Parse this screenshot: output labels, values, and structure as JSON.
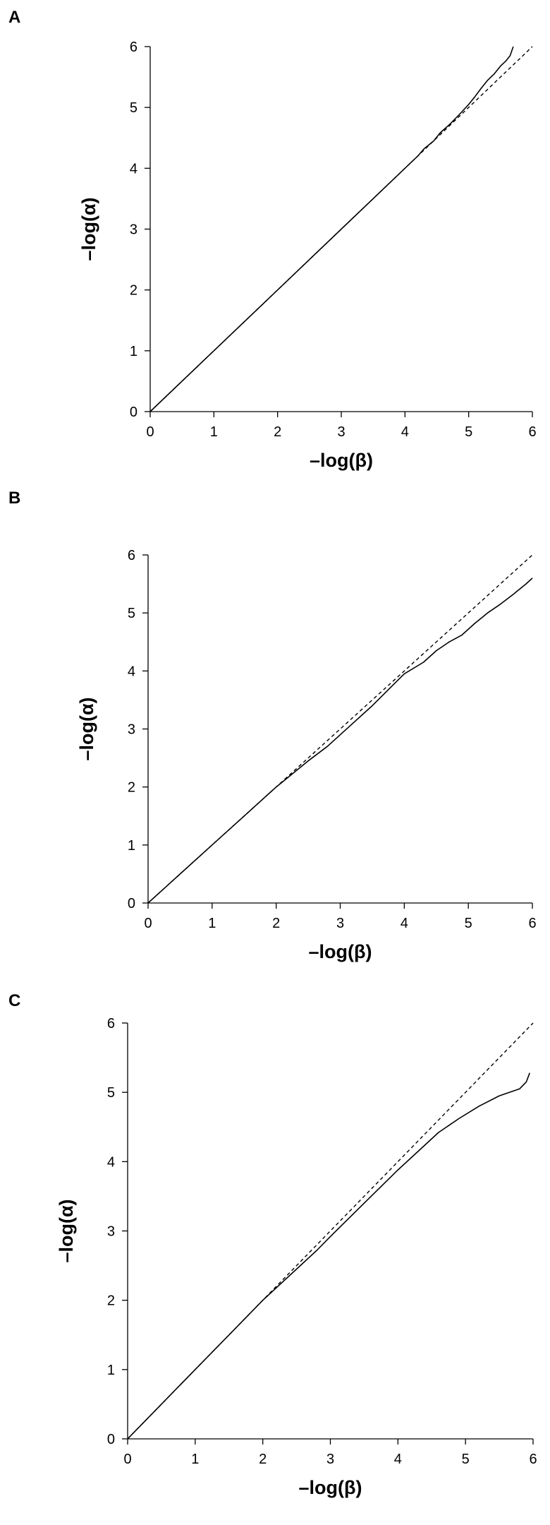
{
  "chart_data": [
    {
      "type": "line",
      "panel_label": "A",
      "xlabel": "–log(β)",
      "ylabel": "–log(α)",
      "xlim": [
        0,
        6
      ],
      "ylim": [
        0,
        6
      ],
      "x_ticks": [
        "0",
        "1",
        "2",
        "3",
        "4",
        "5",
        "6"
      ],
      "y_ticks": [
        "0",
        "1",
        "2",
        "3",
        "4",
        "5",
        "6"
      ],
      "grid": false,
      "legend": "none",
      "series": [
        {
          "style": "dashed",
          "x": [
            0,
            6
          ],
          "y": [
            0,
            6
          ]
        },
        {
          "style": "solid",
          "x": [
            0,
            1,
            2,
            3,
            4.2,
            4.3,
            4.45,
            4.55,
            4.7,
            4.85,
            5.0,
            5.1,
            5.2,
            5.3,
            5.4,
            5.5,
            5.58,
            5.65,
            5.7
          ],
          "y": [
            0,
            1,
            2,
            3,
            4.2,
            4.32,
            4.45,
            4.58,
            4.72,
            4.88,
            5.05,
            5.18,
            5.32,
            5.45,
            5.55,
            5.68,
            5.76,
            5.85,
            6.0
          ]
        }
      ]
    },
    {
      "type": "line",
      "panel_label": "B",
      "xlabel": "–log(β)",
      "ylabel": "–log(α)",
      "xlim": [
        0,
        6
      ],
      "ylim": [
        0,
        6
      ],
      "x_ticks": [
        "0",
        "1",
        "2",
        "3",
        "4",
        "5",
        "6"
      ],
      "y_ticks": [
        "0",
        "1",
        "2",
        "3",
        "4",
        "5",
        "6"
      ],
      "grid": false,
      "legend": "none",
      "series": [
        {
          "style": "dashed",
          "x": [
            0,
            6
          ],
          "y": [
            0,
            6
          ]
        },
        {
          "style": "solid",
          "x": [
            0,
            0.3,
            0.35,
            0.5,
            1,
            1.5,
            2,
            2.5,
            2.8,
            3,
            3.5,
            4,
            4.3,
            4.5,
            4.7,
            4.9,
            5.1,
            5.3,
            5.5,
            5.7,
            5.9,
            6.0
          ],
          "y": [
            0,
            0.3,
            0.35,
            0.5,
            1,
            1.5,
            2,
            2.45,
            2.7,
            2.9,
            3.4,
            3.95,
            4.15,
            4.35,
            4.5,
            4.62,
            4.82,
            5.0,
            5.15,
            5.32,
            5.5,
            5.6
          ]
        }
      ]
    },
    {
      "type": "line",
      "panel_label": "C",
      "xlabel": "–log(β)",
      "ylabel": "–log(α)",
      "xlim": [
        0,
        6
      ],
      "ylim": [
        0,
        6
      ],
      "x_ticks": [
        "0",
        "1",
        "2",
        "3",
        "4",
        "5",
        "6"
      ],
      "y_ticks": [
        "0",
        "1",
        "2",
        "3",
        "4",
        "5",
        "6"
      ],
      "grid": false,
      "legend": "none",
      "series": [
        {
          "style": "dashed",
          "x": [
            0,
            6
          ],
          "y": [
            0,
            6
          ]
        },
        {
          "style": "solid",
          "x": [
            0,
            0.5,
            1,
            1.5,
            2,
            2.5,
            2.8,
            3,
            3.5,
            4,
            4.3,
            4.6,
            4.9,
            5.2,
            5.5,
            5.8,
            5.9,
            5.95
          ],
          "y": [
            0,
            0.5,
            1,
            1.5,
            2,
            2.45,
            2.72,
            2.92,
            3.4,
            3.88,
            4.15,
            4.42,
            4.62,
            4.8,
            4.95,
            5.05,
            5.15,
            5.28
          ]
        }
      ]
    }
  ]
}
